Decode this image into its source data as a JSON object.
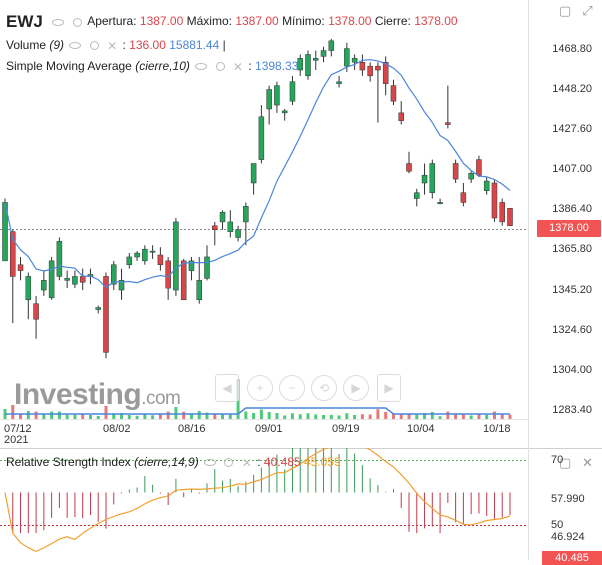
{
  "header": {
    "symbol": "EWJ",
    "open_label": "Apertura:",
    "open_value": "1387.00",
    "high_label": "Máximo:",
    "high_value": "1387.00",
    "low_label": "Mínimo:",
    "low_value": "1378.00",
    "close_label": "Cierre:",
    "close_value": "1378.00"
  },
  "volume": {
    "label": "Volume",
    "param": "(9)",
    "value1": "136.00",
    "value2": "15881.44"
  },
  "sma": {
    "label": "Simple Moving Average",
    "param": "(cierre,10)",
    "value": "1398.33"
  },
  "price_axis": [
    "1468.80",
    "1448.20",
    "1427.60",
    "1407.00",
    "1386.40",
    "1365.80",
    "1345.20",
    "1324.60",
    "1304.00",
    "1283.40"
  ],
  "last_price": "1378.00",
  "date_axis": [
    "07/12",
    "08/02",
    "08/16",
    "09/01",
    "09/19",
    "10/04",
    "10/18"
  ],
  "year_label": "2021",
  "logo": {
    "main": "Investing",
    "suffix": ".com"
  },
  "rsi": {
    "label": "Relative Strength Index",
    "param": "(cierre,14,9)",
    "value1": "40.485",
    "value2": "45.059",
    "axis": [
      "70",
      "57.990",
      "50",
      "46.924"
    ],
    "badge": "40.485"
  },
  "colors": {
    "up": "#26a65b",
    "down": "#d9464a",
    "sma_line": "#4a86d9",
    "rsi_signal": "#f0a030",
    "badge": "#f25353"
  },
  "icons": [
    "eye-icon",
    "gear-icon",
    "close-icon",
    "zoom-in-icon",
    "zoom-out-icon",
    "reset-icon",
    "scroll-left-icon",
    "scroll-right-icon",
    "scroll-end-icon"
  ],
  "chart_data": {
    "type": "candlestick",
    "x_labels": [
      "07/12",
      "08/02",
      "08/16",
      "09/01",
      "09/19",
      "10/04",
      "10/18"
    ],
    "ylim": [
      1283.4,
      1478
    ],
    "candles": [
      {
        "o": 1360,
        "h": 1392,
        "l": 1360,
        "c": 1390
      },
      {
        "o": 1375,
        "h": 1376,
        "l": 1328,
        "c": 1352
      },
      {
        "o": 1358,
        "h": 1362,
        "l": 1350,
        "c": 1355
      },
      {
        "o": 1340,
        "h": 1354,
        "l": 1330,
        "c": 1352
      },
      {
        "o": 1338,
        "h": 1342,
        "l": 1320,
        "c": 1330
      },
      {
        "o": 1345,
        "h": 1355,
        "l": 1342,
        "c": 1350
      },
      {
        "o": 1341,
        "h": 1362,
        "l": 1340,
        "c": 1360
      },
      {
        "o": 1352,
        "h": 1372,
        "l": 1350,
        "c": 1370
      },
      {
        "o": 1350,
        "h": 1355,
        "l": 1346,
        "c": 1351
      },
      {
        "o": 1348,
        "h": 1355,
        "l": 1346,
        "c": 1352
      },
      {
        "o": 1352,
        "h": 1356,
        "l": 1345,
        "c": 1349
      },
      {
        "o": 1352,
        "h": 1356,
        "l": 1348,
        "c": 1353
      },
      {
        "o": 1335,
        "h": 1337,
        "l": 1333,
        "c": 1336
      },
      {
        "o": 1352,
        "h": 1354,
        "l": 1310,
        "c": 1313
      },
      {
        "o": 1348,
        "h": 1360,
        "l": 1345,
        "c": 1358
      },
      {
        "o": 1345,
        "h": 1356,
        "l": 1340,
        "c": 1350
      },
      {
        "o": 1358,
        "h": 1364,
        "l": 1356,
        "c": 1362
      },
      {
        "o": 1362,
        "h": 1365,
        "l": 1360,
        "c": 1364
      },
      {
        "o": 1360,
        "h": 1368,
        "l": 1358,
        "c": 1366
      },
      {
        "o": 1365,
        "h": 1368,
        "l": 1361,
        "c": 1365
      },
      {
        "o": 1363,
        "h": 1367,
        "l": 1355,
        "c": 1358
      },
      {
        "o": 1360,
        "h": 1362,
        "l": 1340,
        "c": 1346
      },
      {
        "o": 1345,
        "h": 1382,
        "l": 1342,
        "c": 1380
      },
      {
        "o": 1360,
        "h": 1361,
        "l": 1340,
        "c": 1340
      },
      {
        "o": 1355,
        "h": 1362,
        "l": 1350,
        "c": 1360
      },
      {
        "o": 1340,
        "h": 1362,
        "l": 1338,
        "c": 1350
      },
      {
        "o": 1351,
        "h": 1368,
        "l": 1350,
        "c": 1362
      },
      {
        "o": 1378,
        "h": 1380,
        "l": 1368,
        "c": 1376
      },
      {
        "o": 1380,
        "h": 1386,
        "l": 1376,
        "c": 1385
      },
      {
        "o": 1375,
        "h": 1386,
        "l": 1372,
        "c": 1380
      },
      {
        "o": 1372,
        "h": 1378,
        "l": 1370,
        "c": 1376
      },
      {
        "o": 1380,
        "h": 1390,
        "l": 1368,
        "c": 1388
      },
      {
        "o": 1400,
        "h": 1410,
        "l": 1394,
        "c": 1410
      },
      {
        "o": 1412,
        "h": 1440,
        "l": 1410,
        "c": 1434
      },
      {
        "o": 1438,
        "h": 1450,
        "l": 1430,
        "c": 1448
      },
      {
        "o": 1440,
        "h": 1452,
        "l": 1436,
        "c": 1450
      },
      {
        "o": 1436,
        "h": 1438,
        "l": 1432,
        "c": 1437
      },
      {
        "o": 1442,
        "h": 1455,
        "l": 1440,
        "c": 1452
      },
      {
        "o": 1458,
        "h": 1466,
        "l": 1455,
        "c": 1464
      },
      {
        "o": 1455,
        "h": 1468,
        "l": 1453,
        "c": 1466
      },
      {
        "o": 1463,
        "h": 1468,
        "l": 1458,
        "c": 1464
      },
      {
        "o": 1465,
        "h": 1470,
        "l": 1462,
        "c": 1468
      },
      {
        "o": 1468,
        "h": 1474,
        "l": 1465,
        "c": 1473
      },
      {
        "o": 1451,
        "h": 1455,
        "l": 1449,
        "c": 1452
      },
      {
        "o": 1460,
        "h": 1472,
        "l": 1457,
        "c": 1469
      },
      {
        "o": 1462,
        "h": 1466,
        "l": 1458,
        "c": 1464
      },
      {
        "o": 1462,
        "h": 1466,
        "l": 1455,
        "c": 1458
      },
      {
        "o": 1460,
        "h": 1462,
        "l": 1452,
        "c": 1455
      },
      {
        "o": 1460,
        "h": 1462,
        "l": 1431,
        "c": 1458
      },
      {
        "o": 1462,
        "h": 1465,
        "l": 1445,
        "c": 1451
      },
      {
        "o": 1450,
        "h": 1453,
        "l": 1440,
        "c": 1442
      },
      {
        "o": 1436,
        "h": 1442,
        "l": 1430,
        "c": 1432
      },
      {
        "o": 1410,
        "h": 1416,
        "l": 1405,
        "c": 1406
      },
      {
        "o": 1392,
        "h": 1397,
        "l": 1388,
        "c": 1395
      },
      {
        "o": 1400,
        "h": 1410,
        "l": 1394,
        "c": 1404
      },
      {
        "o": 1395,
        "h": 1412,
        "l": 1392,
        "c": 1410
      },
      {
        "o": 1390,
        "h": 1392,
        "l": 1389,
        "c": 1390
      },
      {
        "o": 1431,
        "h": 1450,
        "l": 1428,
        "c": 1430
      },
      {
        "o": 1410,
        "h": 1412,
        "l": 1400,
        "c": 1402
      },
      {
        "o": 1395,
        "h": 1400,
        "l": 1388,
        "c": 1390
      },
      {
        "o": 1402,
        "h": 1406,
        "l": 1400,
        "c": 1405
      },
      {
        "o": 1412,
        "h": 1414,
        "l": 1403,
        "c": 1404
      },
      {
        "o": 1396,
        "h": 1403,
        "l": 1394,
        "c": 1401
      },
      {
        "o": 1400,
        "h": 1402,
        "l": 1380,
        "c": 1382
      },
      {
        "o": 1390,
        "h": 1392,
        "l": 1378,
        "c": 1380
      },
      {
        "o": 1387,
        "h": 1387,
        "l": 1378,
        "c": 1378
      }
    ]
  }
}
